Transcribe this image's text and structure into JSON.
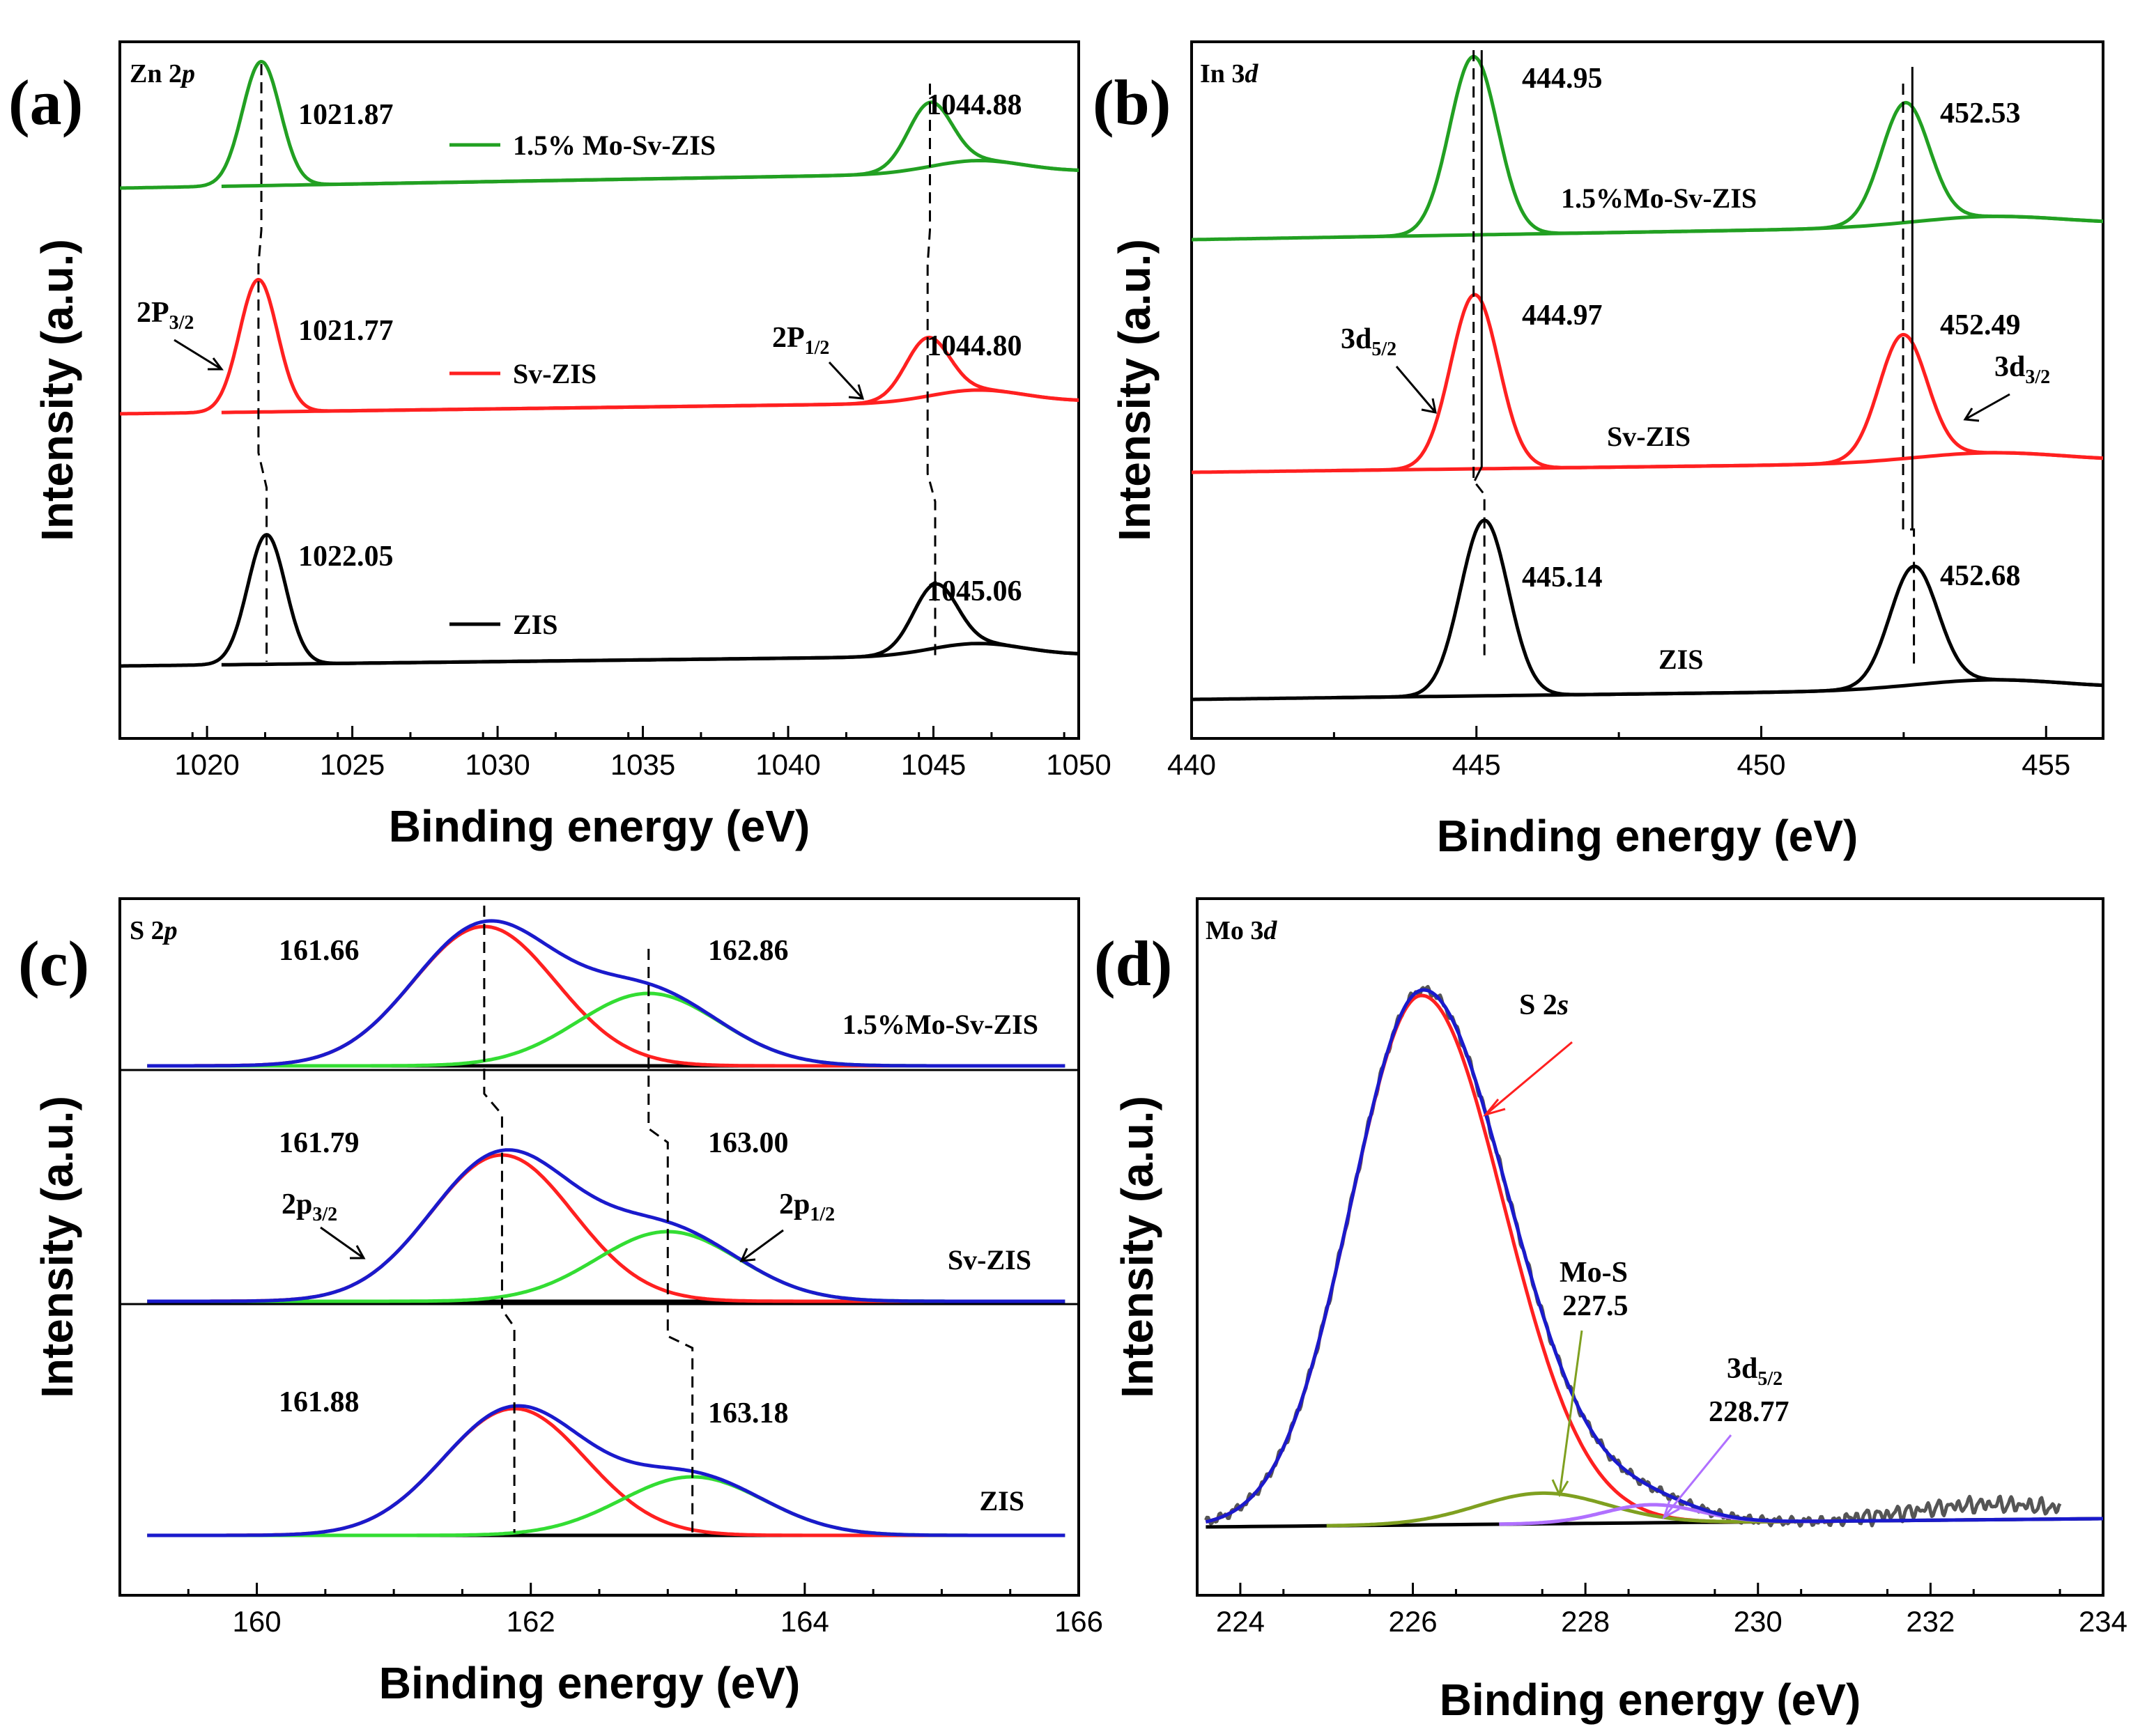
{
  "chart_data": [
    {
      "panel": "(a)",
      "type": "line",
      "element": "Zn 2p",
      "xlabel": "Binding energy (eV)",
      "ylabel": "Intensity (a.u.)",
      "xlim": [
        1017,
        1050
      ],
      "xticks": [
        1020,
        1025,
        1030,
        1035,
        1040,
        1045,
        1050
      ],
      "series": [
        {
          "name": "1.5% Mo-Sv-ZIS",
          "color": "#22a022",
          "peaks": [
            1021.87,
            1044.88
          ],
          "peak_labels": [
            "1021.87",
            "1044.88"
          ]
        },
        {
          "name": "Sv-ZIS",
          "color": "#ff2020",
          "peaks": [
            1021.77,
            1044.8
          ],
          "peak_labels": [
            "1021.77",
            "1044.80"
          ]
        },
        {
          "name": "ZIS",
          "color": "#000000",
          "peaks": [
            1022.05,
            1045.06
          ],
          "peak_labels": [
            "1022.05",
            "1045.06"
          ]
        }
      ],
      "annotations": [
        {
          "main": "2P",
          "sub": "3/2"
        },
        {
          "main": "2P",
          "sub": "1/2"
        }
      ]
    },
    {
      "panel": "(b)",
      "type": "line",
      "element": "In 3d",
      "xlabel": "Binding energy (eV)",
      "ylabel": "Intensity (a.u.)",
      "xlim": [
        440,
        456
      ],
      "xticks": [
        440,
        445,
        450,
        455
      ],
      "series": [
        {
          "name": "1.5%Mo-Sv-ZIS",
          "color": "#22a022",
          "peaks": [
            444.95,
            452.53
          ],
          "peak_labels": [
            "444.95",
            "452.53"
          ]
        },
        {
          "name": "Sv-ZIS",
          "color": "#ff2020",
          "peaks": [
            444.97,
            452.49
          ],
          "peak_labels": [
            "444.97",
            "452.49"
          ]
        },
        {
          "name": "ZIS",
          "color": "#000000",
          "peaks": [
            445.14,
            452.68
          ],
          "peak_labels": [
            "445.14",
            "452.68"
          ]
        }
      ],
      "annotations": [
        {
          "main": "3d",
          "sub": "5/2"
        },
        {
          "main": "3d",
          "sub": "3/2"
        }
      ]
    },
    {
      "panel": "(c)",
      "type": "line",
      "element": "S 2p",
      "xlabel": "Binding energy (eV)",
      "ylabel": "Intensity (a.u.)",
      "xlim": [
        159,
        166
      ],
      "xticks": [
        160,
        162,
        164,
        166
      ],
      "series": [
        {
          "name": "1.5%Mo-Sv-ZIS",
          "peaks": [
            161.66,
            162.86
          ],
          "peak_labels": [
            "161.66",
            "162.86"
          ]
        },
        {
          "name": "Sv-ZIS",
          "peaks": [
            161.79,
            163.0
          ],
          "peak_labels": [
            "161.79",
            "163.00"
          ]
        },
        {
          "name": "ZIS",
          "peaks": [
            161.88,
            163.18
          ],
          "peak_labels": [
            "161.88",
            "163.18"
          ]
        }
      ],
      "component_colors": {
        "envelope": "#1a1acc",
        "p32": "#ff2020",
        "p12": "#33dd33",
        "baseline": "#000000"
      },
      "annotations": [
        {
          "main": "2p",
          "sub": "3/2"
        },
        {
          "main": "2p",
          "sub": "1/2"
        }
      ]
    },
    {
      "panel": "(d)",
      "type": "line",
      "element": "Mo 3d",
      "xlabel": "Binding energy (eV)",
      "ylabel": "Intensity (a.u.)",
      "xlim": [
        223.5,
        234
      ],
      "xticks": [
        224,
        226,
        228,
        230,
        232,
        234
      ],
      "components": [
        {
          "name": "S 2s",
          "center": 226.1,
          "color": "#ff2020"
        },
        {
          "name": "Mo-S",
          "center": 227.5,
          "value_label": "227.5",
          "color": "#7fa020"
        },
        {
          "name": "3d5/2",
          "center": 228.77,
          "value_label": "228.77",
          "color": "#b070ff"
        }
      ],
      "envelope_color": "#1a1acc",
      "raw_color": "#555555",
      "labels": {
        "s2s_main": "S 2",
        "s2s_italic": "s",
        "mos": "Mo-S",
        "mos_value": "227.5",
        "d52_main": "3d",
        "d52_sub": "5/2",
        "d52_value": "228.77"
      }
    }
  ],
  "panel_labels": {
    "a": {
      "letter": "(a)",
      "element_main": "Zn 2",
      "element_italic": "p"
    },
    "b": {
      "letter": "(b)",
      "element_main": "In 3",
      "element_italic": "d"
    },
    "c": {
      "letter": "(c)",
      "element_main": "S 2",
      "element_italic": "p"
    },
    "d": {
      "letter": "(d)",
      "element_main": "Mo 3",
      "element_italic": "d"
    }
  }
}
